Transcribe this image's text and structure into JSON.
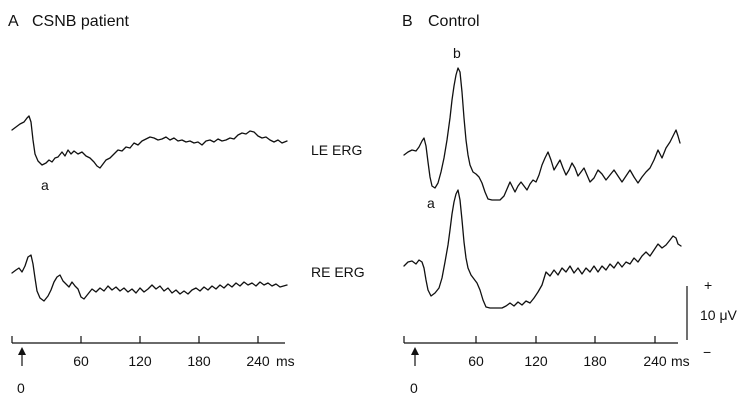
{
  "panels": {
    "a": {
      "letter": "A",
      "title": "CSNB patient",
      "wave_label": "a"
    },
    "b": {
      "letter": "B",
      "title": "Control",
      "wave_label_a": "a",
      "wave_label_b": "b"
    }
  },
  "traces": {
    "le_label": "LE ERG",
    "re_label": "RE ERG"
  },
  "time_axis": {
    "unit": "ms",
    "ticks": [
      "60",
      "120",
      "180",
      "240"
    ],
    "origin_label": "0"
  },
  "scale_bar": {
    "plus": "+",
    "minus": "−",
    "label": "10 μV"
  }
}
